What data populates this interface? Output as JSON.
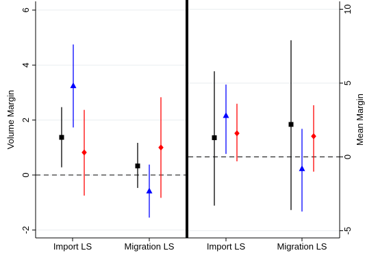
{
  "chart_data": [
    {
      "type": "scatter",
      "panel": "left",
      "ylabel": "Volume Margin",
      "ylim": [
        -2.2,
        6.2
      ],
      "yticks": [
        -2,
        0,
        2,
        4,
        6
      ],
      "categories": [
        "Import LS",
        "Migration LS"
      ],
      "reference_line_y": 0,
      "grid": true,
      "series": [
        {
          "marker": "square",
          "color": "#000000",
          "points": [
            {
              "category": "Import LS",
              "y": 1.37,
              "low": 0.28,
              "high": 2.47
            },
            {
              "category": "Migration LS",
              "y": 0.33,
              "low": -0.47,
              "high": 1.17
            }
          ]
        },
        {
          "marker": "triangle",
          "color": "#0000ff",
          "points": [
            {
              "category": "Import LS",
              "y": 3.25,
              "low": 1.73,
              "high": 4.75
            },
            {
              "category": "Migration LS",
              "y": -0.58,
              "low": -1.55,
              "high": 0.38
            }
          ]
        },
        {
          "marker": "diamond",
          "color": "#ff0000",
          "points": [
            {
              "category": "Import LS",
              "y": 0.82,
              "low": -0.75,
              "high": 2.37
            },
            {
              "category": "Migration LS",
              "y": 1.0,
              "low": -0.83,
              "high": 2.83
            }
          ]
        }
      ]
    },
    {
      "type": "scatter",
      "panel": "right",
      "ylabel": "Mean Margin",
      "ylim": [
        -5.5,
        10.5
      ],
      "yticks": [
        -5,
        0,
        5,
        10
      ],
      "categories": [
        "Import LS",
        "Migration LS"
      ],
      "reference_line_y": 0,
      "grid": true,
      "series": [
        {
          "marker": "square",
          "color": "#000000",
          "points": [
            {
              "category": "Import LS",
              "y": 1.3,
              "low": -3.3,
              "high": 5.8
            },
            {
              "category": "Migration LS",
              "y": 2.2,
              "low": -3.6,
              "high": 7.9
            }
          ]
        },
        {
          "marker": "triangle",
          "color": "#0000ff",
          "points": [
            {
              "category": "Import LS",
              "y": 2.8,
              "low": 0.2,
              "high": 4.9
            },
            {
              "category": "Migration LS",
              "y": -0.8,
              "low": -3.7,
              "high": 1.9
            }
          ]
        },
        {
          "marker": "diamond",
          "color": "#ff0000",
          "points": [
            {
              "category": "Import LS",
              "y": 1.6,
              "low": -0.3,
              "high": 3.6
            },
            {
              "category": "Migration LS",
              "y": 1.4,
              "low": -1.0,
              "high": 3.5
            }
          ]
        }
      ]
    }
  ]
}
